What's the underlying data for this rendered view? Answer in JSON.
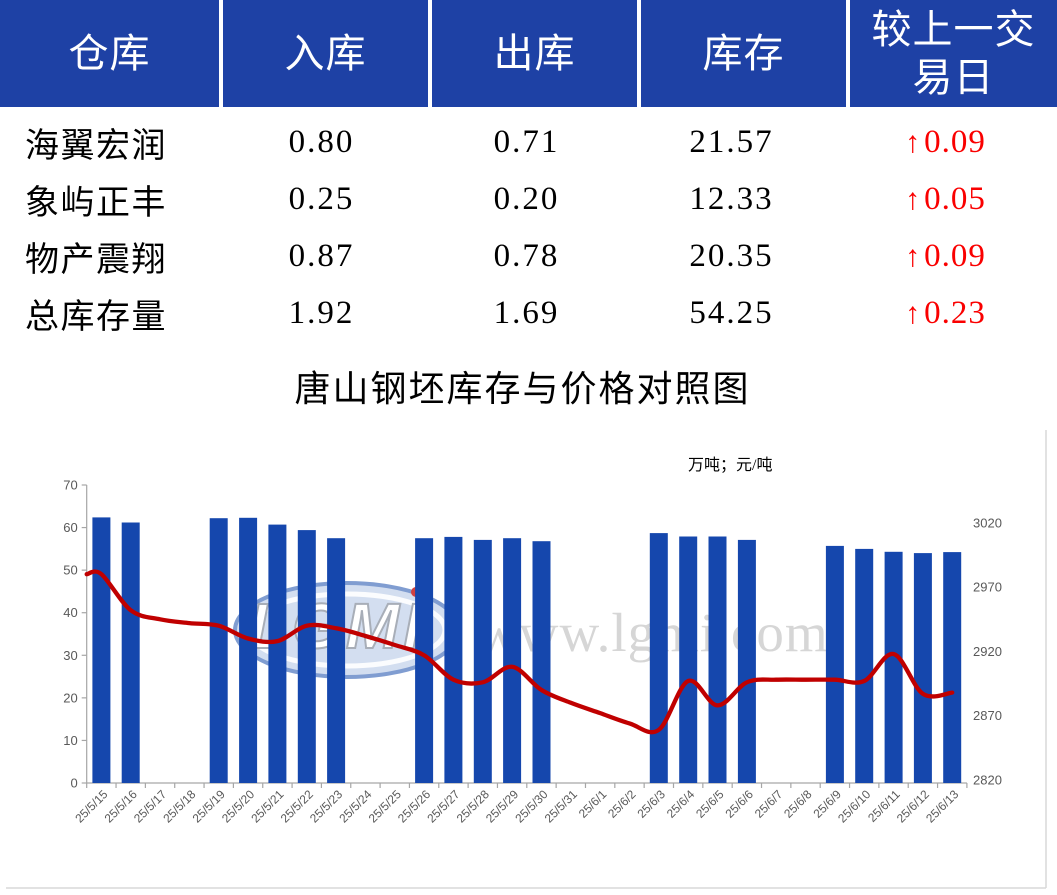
{
  "table": {
    "headers": [
      "仓库",
      "入库",
      "出库",
      "库存",
      "较上一交\n易日"
    ],
    "rows": [
      {
        "warehouse": "海翼宏润",
        "inbound": "0.80",
        "outbound": "0.71",
        "stock": "21.57",
        "change": "0.09",
        "change_direction": "up"
      },
      {
        "warehouse": "象屿正丰",
        "inbound": "0.25",
        "outbound": "0.20",
        "stock": "12.33",
        "change": "0.05",
        "change_direction": "up"
      },
      {
        "warehouse": "物产震翔",
        "inbound": "0.87",
        "outbound": "0.78",
        "stock": "20.35",
        "change": "0.09",
        "change_direction": "up"
      },
      {
        "warehouse": "总库存量",
        "inbound": "1.92",
        "outbound": "1.69",
        "stock": "54.25",
        "change": "0.23",
        "change_direction": "up"
      }
    ],
    "change_arrow": "↑"
  },
  "chart_data": {
    "type": "bar",
    "title": "唐山钢坯库存与价格对照图",
    "units_label": "万吨；元/吨",
    "grid": "off",
    "legend": "none",
    "categories": [
      "25/5/15",
      "25/5/16",
      "25/5/17",
      "25/5/18",
      "25/5/19",
      "25/5/20",
      "25/5/21",
      "25/5/22",
      "25/5/23",
      "25/5/24",
      "25/5/25",
      "25/5/26",
      "25/5/27",
      "25/5/28",
      "25/5/29",
      "25/5/30",
      "25/5/31",
      "25/6/1",
      "25/6/2",
      "25/6/3",
      "25/6/4",
      "25/6/5",
      "25/6/6",
      "25/6/7",
      "25/6/8",
      "25/6/9",
      "25/6/10",
      "25/6/11",
      "25/6/12",
      "25/6/13"
    ],
    "series": [
      {
        "id": "inventory",
        "type": "bar",
        "axis": "left",
        "unit": "万吨",
        "values": [
          62.4,
          61.2,
          null,
          null,
          62.2,
          62.3,
          60.7,
          59.4,
          57.5,
          null,
          null,
          57.5,
          57.8,
          57.1,
          57.5,
          56.8,
          null,
          null,
          null,
          58.7,
          57.9,
          57.9,
          57.1,
          null,
          null,
          55.7,
          55.0,
          54.3,
          54.0,
          54.25
        ]
      },
      {
        "id": "price",
        "type": "line",
        "axis": "right",
        "unit": "元/吨",
        "values": [
          2980,
          2952,
          2945,
          2942,
          2940,
          2930,
          2928,
          2940,
          2938,
          2932,
          2925,
          2917,
          2898,
          2896,
          2908,
          2890,
          2880,
          2872,
          2864,
          2859,
          2897,
          2878,
          2896,
          2898,
          2898,
          2898,
          2897,
          2918,
          2887,
          2888
        ]
      }
    ],
    "left_axis": {
      "min": 0,
      "max": 70,
      "ticks": [
        0,
        10,
        20,
        30,
        40,
        50,
        60,
        70
      ]
    },
    "right_axis": {
      "min": 2820,
      "max": 3020,
      "ticks": [
        2820,
        2870,
        2920,
        2970,
        3020
      ]
    },
    "watermark": {
      "logo_text": "LGMI",
      "url_text": "www.lgmi.com"
    }
  },
  "colors": {
    "header_bg": "#1e41a5",
    "header_text": "#ffffff",
    "change_red": "#fa0000",
    "bar_blue": "#1547ad",
    "line_red": "#c00000",
    "axis_text": "#595959",
    "axis_line": "#a6a6a6",
    "border_gray": "#d9d9d9",
    "watermark_gray": "#d6d6d6",
    "logo_fill": "#ccd9ee",
    "logo_ring": "#6b8cc9"
  }
}
